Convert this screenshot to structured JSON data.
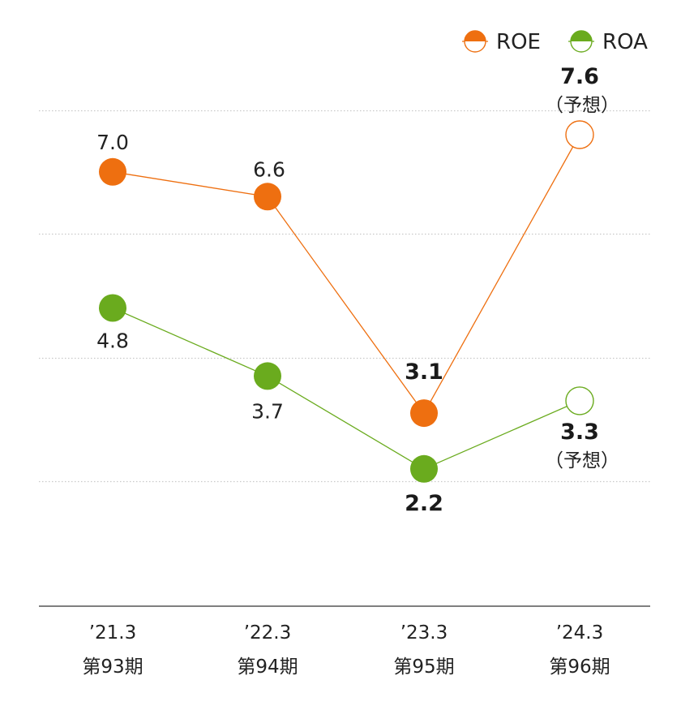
{
  "chart_data": {
    "type": "line",
    "categories": [
      {
        "year": "’21.3",
        "period": "第93期"
      },
      {
        "year": "’22.3",
        "period": "第94期"
      },
      {
        "year": "’23.3",
        "period": "第95期"
      },
      {
        "year": "’24.3",
        "period": "第96期"
      }
    ],
    "series": [
      {
        "name": "ROE",
        "color": "#ee6f10",
        "values": [
          7.0,
          6.6,
          3.1,
          7.6
        ],
        "labels": [
          "7.0",
          "6.6",
          "3.1",
          "7.6"
        ],
        "forecast": [
          false,
          false,
          false,
          true
        ]
      },
      {
        "name": "ROA",
        "color": "#6aab1e",
        "values": [
          4.8,
          3.7,
          2.2,
          3.3
        ],
        "labels": [
          "4.8",
          "3.7",
          "2.2",
          "3.3"
        ],
        "forecast": [
          false,
          false,
          false,
          true
        ]
      }
    ],
    "forecast_note": "（予想）",
    "highlight_index": [
      2,
      3
    ],
    "ylim": [
      0,
      8
    ],
    "gridlines": [
      2,
      4,
      6,
      8
    ],
    "grid": true,
    "legend_position": "top-right"
  }
}
